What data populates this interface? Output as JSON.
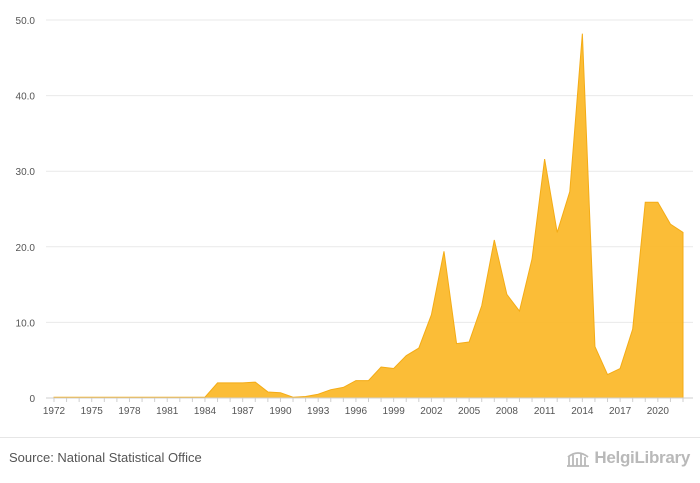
{
  "chart_data": {
    "type": "area",
    "title": "",
    "xlabel": "",
    "ylabel": "",
    "ylim": [
      0,
      50
    ],
    "yticks": [
      "0",
      "10.0",
      "20.0",
      "30.0",
      "40.0",
      "50.0"
    ],
    "ytick_values": [
      0,
      10,
      20,
      30,
      40,
      50
    ],
    "xticks": [
      "1972",
      "1975",
      "1978",
      "1981",
      "1984",
      "1987",
      "1990",
      "1993",
      "1996",
      "1999",
      "2002",
      "2005",
      "2008",
      "2011",
      "2014",
      "2017",
      "2020"
    ],
    "grid": true,
    "color": "#fbb92c",
    "x": [
      1972,
      1973,
      1974,
      1975,
      1976,
      1977,
      1978,
      1979,
      1980,
      1981,
      1982,
      1983,
      1984,
      1985,
      1986,
      1987,
      1988,
      1989,
      1990,
      1991,
      1992,
      1993,
      1994,
      1995,
      1996,
      1997,
      1998,
      1999,
      2000,
      2001,
      2002,
      2003,
      2004,
      2005,
      2006,
      2007,
      2008,
      2009,
      2010,
      2011,
      2012,
      2013,
      2014,
      2015,
      2016,
      2017,
      2018,
      2019,
      2020,
      2021,
      2022
    ],
    "values": [
      0.1,
      0.1,
      0.1,
      0.1,
      0.1,
      0.1,
      0.1,
      0.1,
      0.1,
      0.1,
      0.1,
      0.1,
      0.1,
      2.0,
      2.0,
      2.0,
      2.1,
      0.8,
      0.7,
      0.1,
      0.2,
      0.5,
      1.1,
      1.4,
      2.3,
      2.3,
      4.1,
      3.9,
      5.6,
      6.6,
      11.0,
      19.4,
      7.2,
      7.4,
      12.2,
      20.9,
      13.7,
      11.5,
      18.4,
      31.6,
      21.9,
      27.3,
      48.2,
      6.8,
      3.1,
      3.9,
      9.1,
      25.9,
      25.9,
      23.0,
      21.9
    ]
  },
  "footer": {
    "source": "Source: National Statistical Office",
    "brand": "HelgiLibrary"
  }
}
